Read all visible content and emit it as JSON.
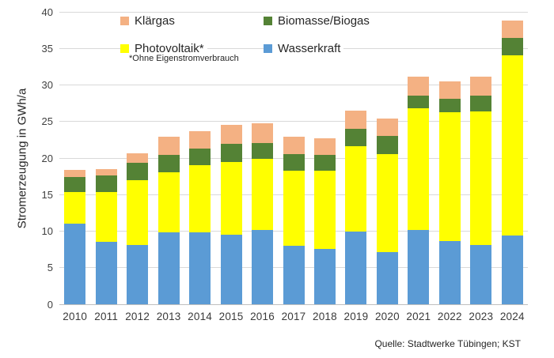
{
  "colors": {
    "wasserkraft": "#5B9BD5",
    "photovoltaik": "#FFFF00",
    "biomasse": "#548235",
    "klaergas": "#F4B183",
    "gridline": "#D9D9D9",
    "axis_line": "#BFBFBF",
    "text": "#262626"
  },
  "legend": {
    "items": [
      {
        "label": "Klärgas",
        "color": "#F4B183",
        "row": 0,
        "col": 0
      },
      {
        "label": "Biomasse/Biogas",
        "color": "#548235",
        "row": 0,
        "col": 1
      },
      {
        "label": "Photovoltaik*",
        "color": "#FFFF00",
        "row": 1,
        "col": 0
      },
      {
        "label": "Wasserkraft",
        "color": "#5B9BD5",
        "row": 1,
        "col": 1
      }
    ],
    "footnote": "*Ohne Eigenstromverbrauch"
  },
  "y_axis": {
    "title": "Stromerzeugung in GWh/a",
    "ticks": [
      0,
      5,
      10,
      15,
      20,
      25,
      30,
      35,
      40
    ],
    "max": 40
  },
  "source": "Quelle: Stadtwerke Tübingen; KST",
  "chart_data": {
    "type": "bar",
    "stacked": true,
    "title": "",
    "xlabel": "",
    "ylabel": "Stromerzeugung in GWh/a",
    "ylim": [
      0,
      40
    ],
    "grid": true,
    "legend_position": "top-inside",
    "categories": [
      "2010",
      "2011",
      "2012",
      "2013",
      "2014",
      "2015",
      "2016",
      "2017",
      "2018",
      "2019",
      "2020",
      "2021",
      "2022",
      "2023",
      "2024"
    ],
    "series": [
      {
        "name": "Wasserkraft",
        "color": "#5B9BD5",
        "values": [
          11.0,
          8.5,
          8.1,
          9.8,
          9.8,
          9.5,
          10.2,
          8.0,
          7.6,
          9.9,
          7.1,
          10.2,
          8.7,
          8.1,
          9.4
        ]
      },
      {
        "name": "Photovoltaik*",
        "color": "#FFFF00",
        "values": [
          4.4,
          6.9,
          8.9,
          8.3,
          9.2,
          10.0,
          9.7,
          10.3,
          10.7,
          11.7,
          13.4,
          16.6,
          17.6,
          18.3,
          24.7
        ]
      },
      {
        "name": "Biomasse/Biogas",
        "color": "#548235",
        "values": [
          2.0,
          2.2,
          2.3,
          2.3,
          2.3,
          2.5,
          2.2,
          2.2,
          2.1,
          2.4,
          2.5,
          1.7,
          1.8,
          2.1,
          2.3
        ]
      },
      {
        "name": "Klärgas",
        "color": "#F4B183",
        "values": [
          1.0,
          0.9,
          1.3,
          2.5,
          2.4,
          2.5,
          2.7,
          2.4,
          2.3,
          2.5,
          2.4,
          2.6,
          2.4,
          2.6,
          2.4
        ]
      }
    ],
    "totals": [
      18.4,
      18.5,
      20.6,
      22.9,
      23.7,
      24.5,
      24.8,
      22.9,
      22.7,
      26.5,
      25.4,
      31.1,
      30.5,
      31.1,
      38.8
    ]
  }
}
